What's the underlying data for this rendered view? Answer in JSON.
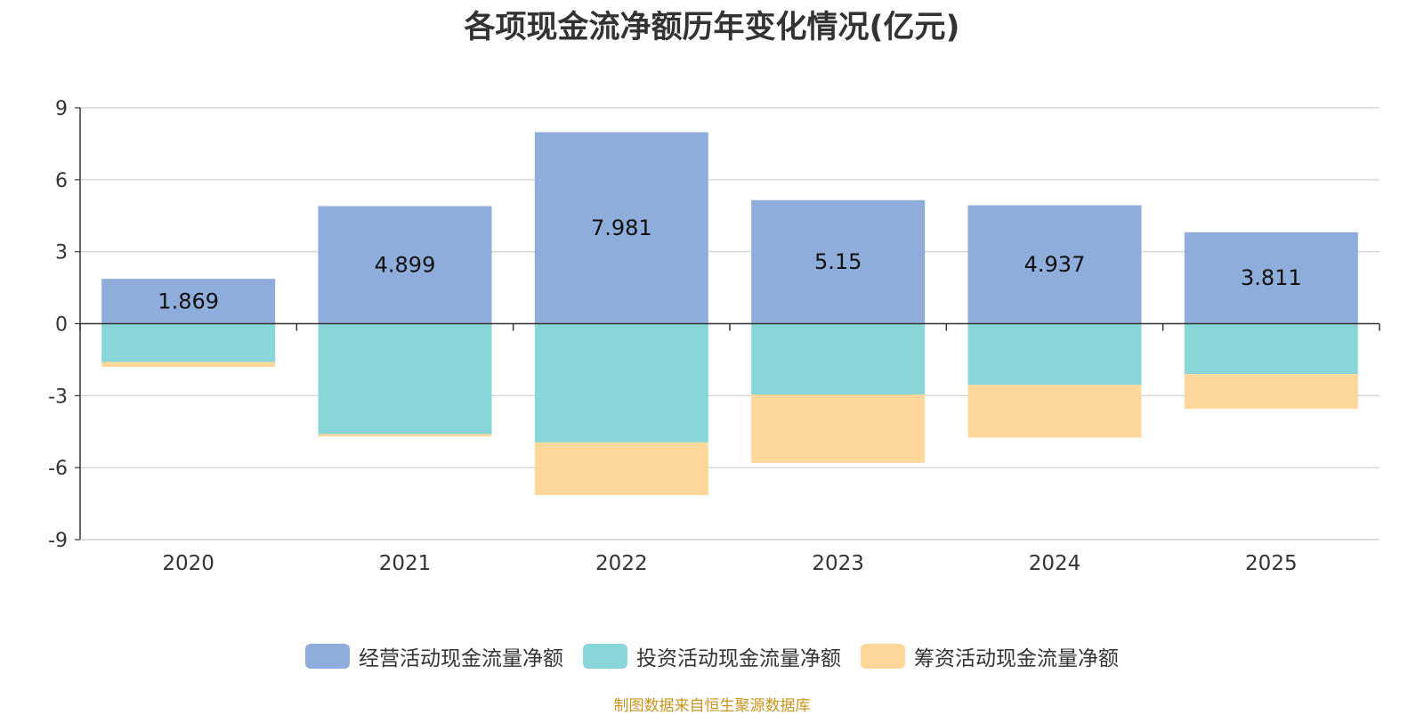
{
  "chart_data": {
    "type": "bar",
    "stacked": true,
    "title": "各项现金流净额历年变化情况(亿元)",
    "categories": [
      "2020",
      "2021",
      "2022",
      "2023",
      "2024",
      "2025"
    ],
    "series": [
      {
        "name": "经营活动现金流量净额",
        "color": "#8eaddb",
        "values": [
          1.869,
          4.899,
          7.981,
          5.15,
          4.937,
          3.811
        ],
        "labels": [
          "1.869",
          "4.899",
          "7.981",
          "5.15",
          "4.937",
          "3.811"
        ]
      },
      {
        "name": "投资活动现金流量净额",
        "color": "#88d6d8",
        "values": [
          -1.6,
          -4.6,
          -4.95,
          -2.95,
          -2.55,
          -2.1
        ]
      },
      {
        "name": "筹资活动现金流量净额",
        "color": "#fdd89a",
        "values": [
          -0.2,
          -0.1,
          -2.2,
          -2.85,
          -2.2,
          -1.45
        ]
      }
    ],
    "yticks": [
      "9",
      "6",
      "3",
      "0",
      "-3",
      "-6",
      "-9"
    ],
    "ylim": [
      -9,
      9
    ],
    "legend_position": "bottom",
    "grid": true
  },
  "source_note": "制图数据来自恒生聚源数据库"
}
